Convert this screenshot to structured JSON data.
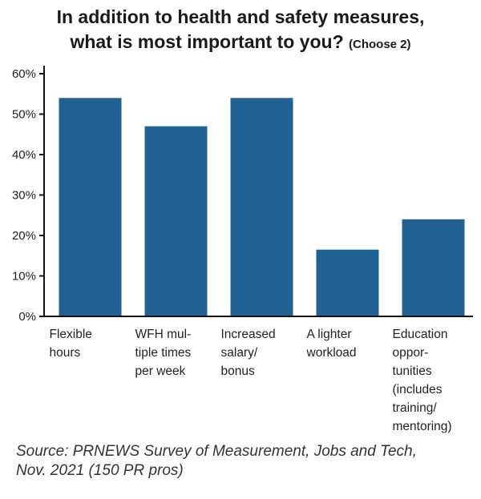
{
  "title": {
    "line1": "In addition to health and safety measures,",
    "line2": "what is most important to you?",
    "note": "(Choose 2)"
  },
  "source": {
    "line1": "Source: PRNEWS Survey of Measurement, Jobs and Tech,",
    "line2": "Nov. 2021 (150 PR pros)"
  },
  "chart_data": {
    "type": "bar",
    "categories": [
      [
        "Flexible",
        "hours"
      ],
      [
        "WFH mul-",
        "tiple times",
        "per week"
      ],
      [
        "Increased",
        "salary/",
        "bonus"
      ],
      [
        "A lighter",
        "workload"
      ],
      [
        "Education",
        "oppor-",
        "tunities",
        "(includes",
        "training/",
        "mentoring)"
      ]
    ],
    "values": [
      54,
      47,
      54,
      16.5,
      24
    ],
    "yticks": [
      "0%",
      "10%",
      "20%",
      "30%",
      "40%",
      "50%",
      "60%"
    ],
    "ylim": [
      0,
      60
    ],
    "bar_color": "#236192",
    "axis_color": "#111111",
    "grid": false,
    "legend": "none"
  }
}
